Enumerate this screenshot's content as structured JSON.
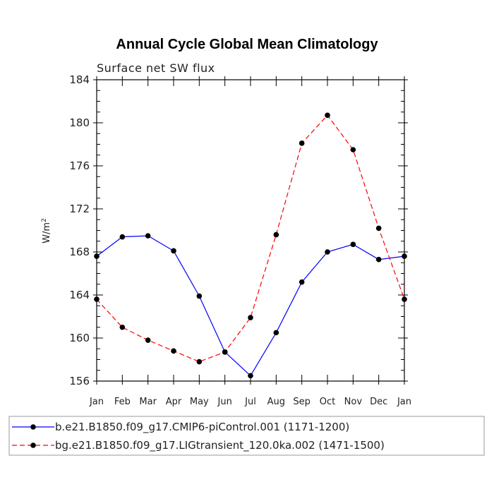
{
  "chart_data": {
    "type": "line",
    "title": "Annual Cycle Global Mean Climatology",
    "subtitle": "Surface net SW flux",
    "ylabel": "W/m",
    "ylabel_superscript": "2",
    "ylim": [
      156,
      184
    ],
    "yticks": [
      156,
      160,
      164,
      168,
      172,
      176,
      180,
      184
    ],
    "categories": [
      "Jan",
      "Feb",
      "Mar",
      "Apr",
      "May",
      "Jun",
      "Jul",
      "Aug",
      "Sep",
      "Oct",
      "Nov",
      "Dec",
      "Jan"
    ],
    "series": [
      {
        "name": "b.e21.B1850.f09_g17.CMIP6-piControl.001 (1171-1200)",
        "color": "#0000ff",
        "dash": "solid",
        "values": [
          167.6,
          169.4,
          169.5,
          168.1,
          163.9,
          158.7,
          156.5,
          160.5,
          165.2,
          168.0,
          168.7,
          167.3,
          167.6
        ]
      },
      {
        "name": "bg.e21.B1850.f09_g17.LIGtransient_120.0ka.002 (1471-1500)",
        "color": "#ff0000",
        "dash": "dashed",
        "values": [
          163.6,
          161.0,
          159.8,
          158.8,
          157.8,
          158.7,
          161.9,
          169.6,
          178.1,
          180.7,
          177.5,
          170.2,
          163.6
        ]
      }
    ]
  }
}
